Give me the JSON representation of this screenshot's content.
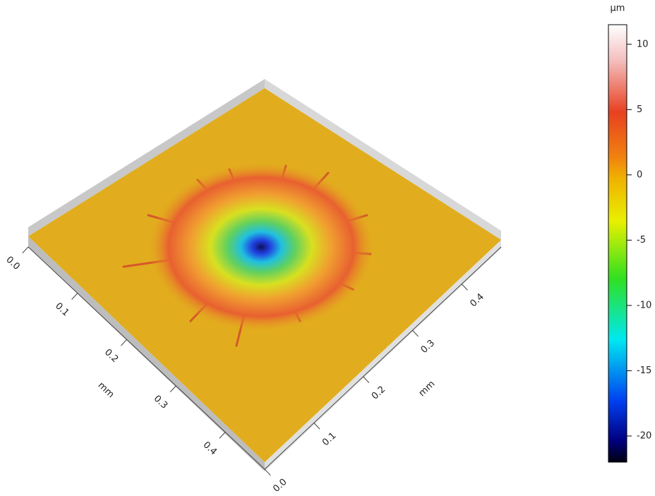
{
  "chart_data": {
    "type": "surface",
    "x_label": "mm",
    "y_label": "mm",
    "colorbar_label": "µm",
    "xlim": [
      0,
      0.48
    ],
    "xticks": [
      {
        "value": 0,
        "label": "0.0"
      },
      {
        "value": 0.1,
        "label": "0.1"
      },
      {
        "value": 0.2,
        "label": "0.2"
      },
      {
        "value": 0.3,
        "label": "0.3"
      },
      {
        "value": 0.4,
        "label": "0.4"
      }
    ],
    "ylim": [
      0,
      0.48
    ],
    "yticks": [
      {
        "value": 0,
        "label": "0.0"
      },
      {
        "value": 0.1,
        "label": "0.1"
      },
      {
        "value": 0.2,
        "label": "0.2"
      },
      {
        "value": 0.3,
        "label": "0.3"
      },
      {
        "value": 0.4,
        "label": "0.4"
      }
    ],
    "clim": [
      -22,
      11.5
    ],
    "cticks": [
      -20,
      -15,
      -10,
      -5,
      0,
      5,
      10
    ]
  }
}
